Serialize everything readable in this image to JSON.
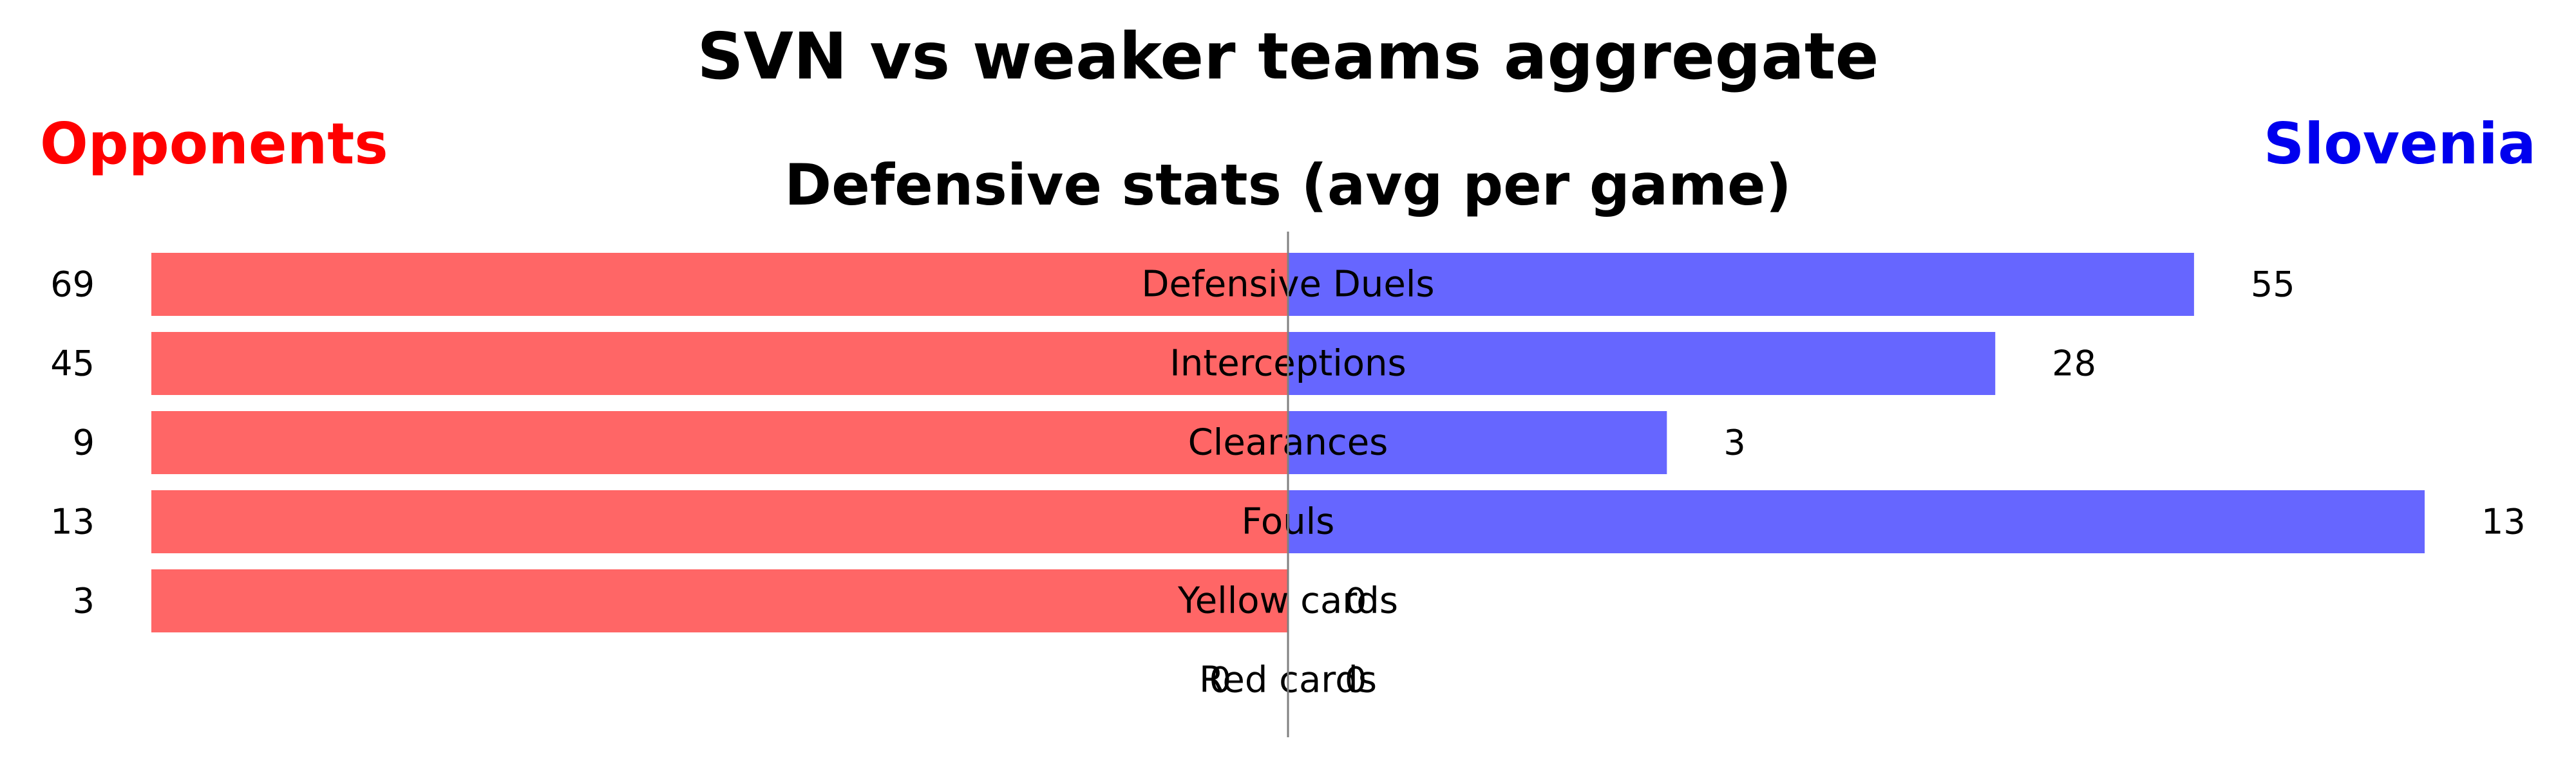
{
  "chart_data": {
    "type": "bar",
    "orientation": "horizontal-diverging",
    "title": "SVN vs weaker teams aggregate",
    "subtitle": "Defensive stats (avg per game)",
    "legend": {
      "left": "Opponents",
      "right": "Slovenia",
      "placement": "top-corners"
    },
    "categories": [
      "Defensive Duels",
      "Interceptions",
      "Clearances",
      "Fouls",
      "Yellow cards",
      "Red cards"
    ],
    "series": [
      {
        "name": "Opponents",
        "values": [
          69,
          45,
          9,
          13,
          3,
          0
        ],
        "color": "#ff6666",
        "label_color": "#ff0000"
      },
      {
        "name": "Slovenia",
        "values": [
          55,
          28,
          3,
          13,
          0,
          0
        ],
        "color": "#6666ff",
        "label_color": "#0000ee"
      }
    ],
    "normalization": "per-category max",
    "grid": false
  }
}
